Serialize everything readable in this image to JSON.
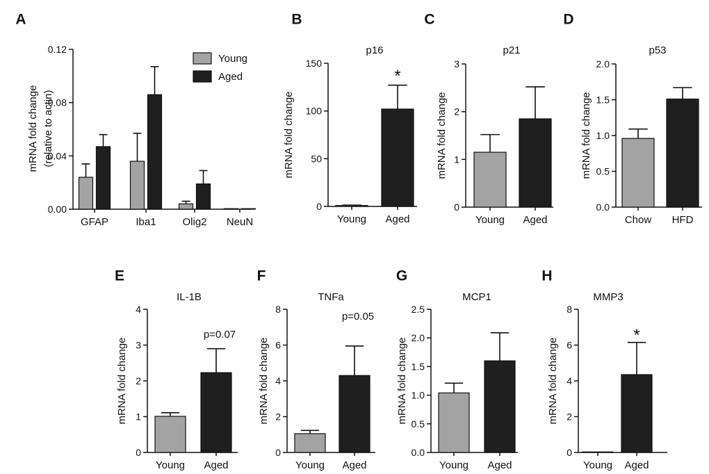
{
  "colors": {
    "young": "#a3a3a3",
    "aged": "#1f1f1f",
    "axis": "#111111"
  },
  "chart_data": [
    {
      "panel": "A",
      "type": "bar",
      "title": "",
      "ylabel": [
        "mRNA fold change",
        "(relative to actin)"
      ],
      "xlabel": "",
      "ylim": [
        0,
        0.12
      ],
      "yticks": [
        "0.00",
        "0.04",
        "0.08",
        "0.12"
      ],
      "categories": [
        "GFAP",
        "Iba1",
        "Olig2",
        "NeuN"
      ],
      "legend": {
        "position": "top-right",
        "entries": [
          "Young",
          "Aged"
        ]
      },
      "series": [
        {
          "name": "Young",
          "values": [
            0.024,
            0.036,
            0.004,
            0.0
          ],
          "errors": [
            0.01,
            0.021,
            0.002,
            0.0
          ]
        },
        {
          "name": "Aged",
          "values": [
            0.047,
            0.086,
            0.019,
            0.0
          ],
          "errors": [
            0.009,
            0.021,
            0.01,
            0.0
          ]
        }
      ]
    },
    {
      "panel": "B",
      "type": "bar",
      "title": "p16",
      "ylabel": [
        "mRNA fold change"
      ],
      "ylim": [
        0,
        150
      ],
      "yticks": [
        "0",
        "50",
        "100",
        "150"
      ],
      "categories": [
        "Young",
        "Aged"
      ],
      "values": [
        1,
        102
      ],
      "errors": [
        0.3,
        25
      ],
      "annotation": "*"
    },
    {
      "panel": "C",
      "type": "bar",
      "title": "p21",
      "ylabel": [
        "mRNA fold change"
      ],
      "ylim": [
        0,
        3
      ],
      "yticks": [
        "0",
        "1",
        "2",
        "3"
      ],
      "categories": [
        "Young",
        "Aged"
      ],
      "values": [
        1.15,
        1.85
      ],
      "errors": [
        0.37,
        0.67
      ],
      "annotation": ""
    },
    {
      "panel": "D",
      "type": "bar",
      "title": "p53",
      "ylabel": [
        "mRNA fold change"
      ],
      "ylim": [
        0,
        2.0
      ],
      "yticks": [
        "0.0",
        "0.5",
        "1.0",
        "1.5",
        "2.0"
      ],
      "categories": [
        "Chow",
        "HFD"
      ],
      "values": [
        0.96,
        1.51
      ],
      "errors": [
        0.13,
        0.16
      ],
      "annotation": ""
    },
    {
      "panel": "E",
      "type": "bar",
      "title": "IL-1B",
      "ylabel": [
        "mRNA fold change"
      ],
      "ylim": [
        0,
        4
      ],
      "yticks": [
        "0",
        "1",
        "2",
        "3",
        "4"
      ],
      "categories": [
        "Young",
        "Aged"
      ],
      "values": [
        1.01,
        2.23
      ],
      "errors": [
        0.1,
        0.67
      ],
      "annotation": "p=0.07"
    },
    {
      "panel": "F",
      "type": "bar",
      "title": "TNFa",
      "ylabel": [
        "mRNA fold change"
      ],
      "ylim": [
        0,
        8
      ],
      "yticks": [
        "0",
        "2",
        "4",
        "6",
        "8"
      ],
      "categories": [
        "Young",
        "Aged"
      ],
      "values": [
        1.05,
        4.3
      ],
      "errors": [
        0.18,
        1.65
      ],
      "annotation": "p=0.05"
    },
    {
      "panel": "G",
      "type": "bar",
      "title": "MCP1",
      "ylabel": [
        "mRNA fold change"
      ],
      "ylim": [
        0,
        2.5
      ],
      "yticks": [
        "0.0",
        "0.5",
        "1.0",
        "1.5",
        "2.0",
        "2.5"
      ],
      "categories": [
        "Young",
        "Aged"
      ],
      "values": [
        1.04,
        1.6
      ],
      "errors": [
        0.17,
        0.49
      ],
      "annotation": ""
    },
    {
      "panel": "H",
      "type": "bar",
      "title": "MMP3",
      "ylabel": [
        "mRNA fold change"
      ],
      "ylim": [
        0,
        8
      ],
      "yticks": [
        "0",
        "2",
        "4",
        "6",
        "8"
      ],
      "categories": [
        "Young",
        "Aged"
      ],
      "values": [
        0.01,
        4.35
      ],
      "errors": [
        0.0,
        1.8
      ],
      "annotation": "*"
    }
  ]
}
